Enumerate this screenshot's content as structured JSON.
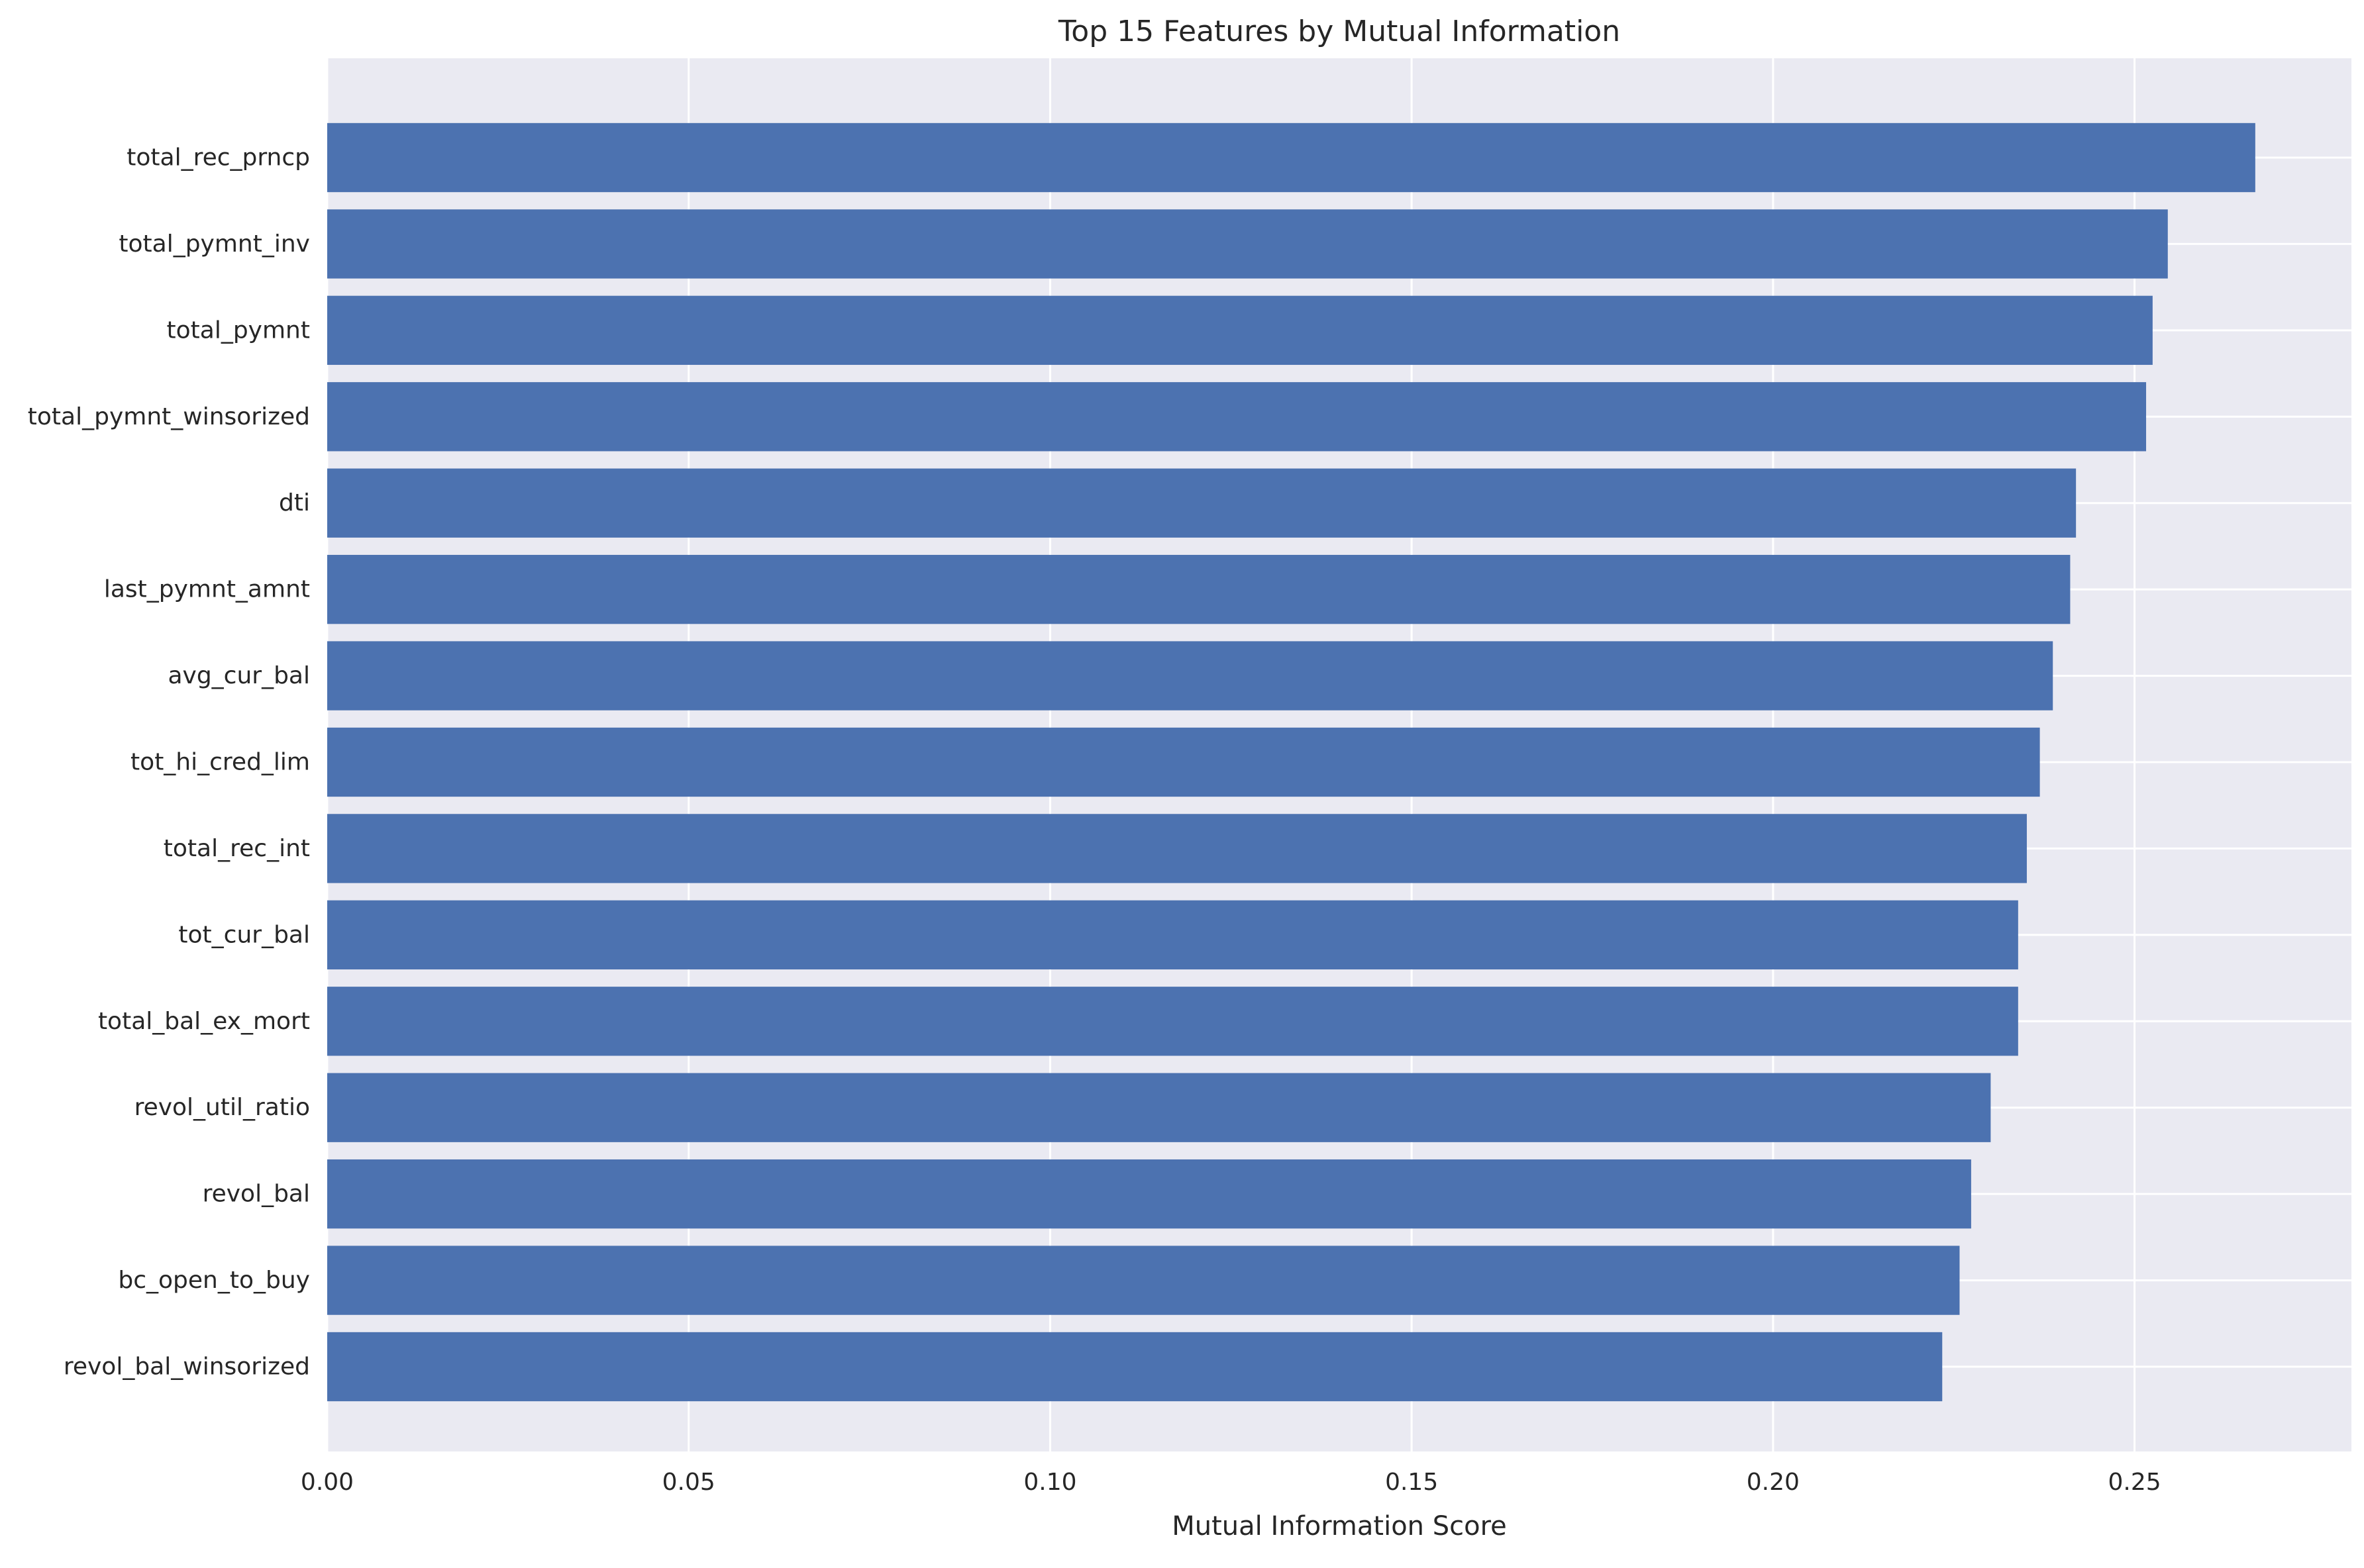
{
  "chart_data": {
    "type": "bar",
    "orientation": "horizontal",
    "title": "Top 15 Features by Mutual Information",
    "xlabel": "Mutual Information Score",
    "ylabel": "",
    "xlim": [
      0,
      0.28
    ],
    "xticks": [
      "0.00",
      "0.05",
      "0.10",
      "0.15",
      "0.20",
      "0.25"
    ],
    "xtick_values": [
      0,
      0.05,
      0.1,
      0.15,
      0.2,
      0.25
    ],
    "grid": true,
    "categories": [
      "total_rec_prncp",
      "total_pymnt_inv",
      "total_pymnt",
      "total_pymnt_winsorized",
      "dti",
      "last_pymnt_amnt",
      "avg_cur_bal",
      "tot_hi_cred_lim",
      "total_rec_int",
      "tot_cur_bal",
      "total_bal_ex_mort",
      "revol_util_ratio",
      "revol_bal",
      "bc_open_to_buy",
      "revol_bal_winsorized"
    ],
    "values": [
      0.2667,
      0.2546,
      0.2525,
      0.2516,
      0.2419,
      0.2411,
      0.2387,
      0.2369,
      0.2351,
      0.2339,
      0.2339,
      0.2301,
      0.2274,
      0.2258,
      0.2234
    ]
  },
  "colors": {
    "bar": "#4c72b0",
    "plot_background": "#eaeaf2",
    "grid": "#ffffff",
    "text": "#262626"
  }
}
